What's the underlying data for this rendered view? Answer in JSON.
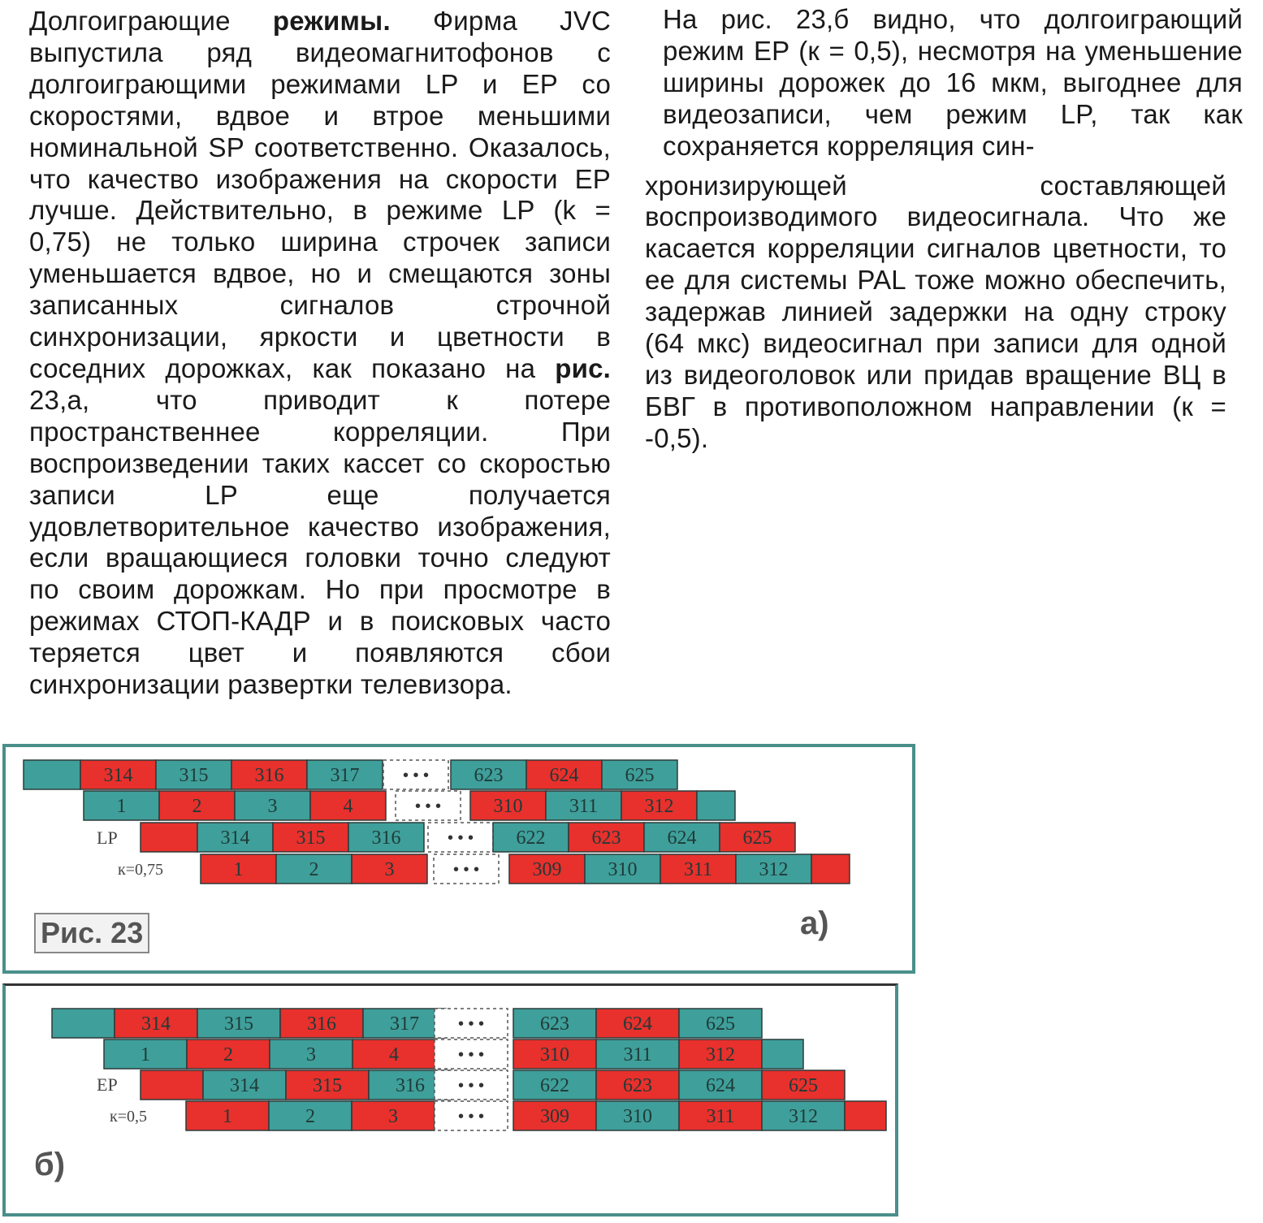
{
  "left_column": {
    "p1_lead": "Долгоиграющие ",
    "p1_bold": "режимы.",
    "p1_a": " Фирма JVC выпустила ряд видеомагнитофонов с долгоиграющими режимами LP и EP со скоростями, вдвое и втрое меньшими номинальной SP соответственно. Оказалось, что качество изображения на скорости EP лучше. Действительно, в режиме LP (k = 0,75) не только ширина строчек записи уменьшается вдвое, но и смещаются зоны записанных сигналов строчной синхронизации, яркости и цветности в соседних дорожках, как показано на ",
    "p1_bold2": "рис.",
    "p1_b": " 23,а, что приводит к потере пространственнее корреляции. При воспроизведении таких кассет со скоростью записи LP еще получается удовлетворительное качество изображения, если вращающиеся головки точно следуют по своим дорожкам. Но при просмотре в режимах СТОП-КАДР и в поисковых часто теряется цвет и появляются сбои синхронизации развертки телевизора."
  },
  "right_column": {
    "p1": "На рис. 23,б видно, что долгоиграющий режим EP (к = 0,5), несмотря на уменьшение ширины дорожек до 16 мкм, выгоднее для видеозаписи, чем режим LP, так как сохраняется корреляция син-",
    "p2": "хронизирующей составляющей воспроизводимого видеосигнала. Что же касается корреляции сигналов цветности, то ее для системы PAL тоже можно обеспечить, задержав линией задержки на одну строку (64 мкс) видеосигнал при записи для одной из видеоголовок или придав вращение ВЦ в БВГ в противоположном направлении (к = -0,5)."
  },
  "figure": {
    "caption": "Рис. 23",
    "colors": {
      "red": "#e8302c",
      "teal": "#3f9f9a",
      "border": "#2b3b3a"
    },
    "panel_a": {
      "label": "а)",
      "mode_label": "LP",
      "k_label": "к=0,75",
      "dots": "• • •",
      "rows": [
        {
          "cells": [
            {
              "t": "",
              "c": "teal"
            },
            {
              "t": "314",
              "c": "red"
            },
            {
              "t": "315",
              "c": "teal"
            },
            {
              "t": "316",
              "c": "red"
            },
            {
              "t": "317",
              "c": "teal"
            }
          ],
          "right": [
            {
              "t": "623",
              "c": "teal"
            },
            {
              "t": "624",
              "c": "red"
            },
            {
              "t": "625",
              "c": "teal"
            }
          ]
        },
        {
          "cells": [
            {
              "t": "1",
              "c": "teal"
            },
            {
              "t": "2",
              "c": "red"
            },
            {
              "t": "3",
              "c": "teal"
            },
            {
              "t": "4",
              "c": "red"
            }
          ],
          "right": [
            {
              "t": "310",
              "c": "red"
            },
            {
              "t": "311",
              "c": "teal"
            },
            {
              "t": "312",
              "c": "red"
            },
            {
              "t": "",
              "c": "teal"
            }
          ]
        },
        {
          "cells": [
            {
              "t": "",
              "c": "red"
            },
            {
              "t": "314",
              "c": "teal"
            },
            {
              "t": "315",
              "c": "red"
            },
            {
              "t": "316",
              "c": "teal"
            }
          ],
          "right": [
            {
              "t": "622",
              "c": "teal"
            },
            {
              "t": "623",
              "c": "red"
            },
            {
              "t": "624",
              "c": "teal"
            },
            {
              "t": "625",
              "c": "red"
            }
          ]
        },
        {
          "cells": [
            {
              "t": "1",
              "c": "red"
            },
            {
              "t": "2",
              "c": "teal"
            },
            {
              "t": "3",
              "c": "red"
            }
          ],
          "right": [
            {
              "t": "309",
              "c": "red"
            },
            {
              "t": "310",
              "c": "teal"
            },
            {
              "t": "311",
              "c": "red"
            },
            {
              "t": "312",
              "c": "teal"
            },
            {
              "t": "",
              "c": "red"
            }
          ]
        }
      ]
    },
    "panel_b": {
      "label": "б)",
      "mode_label": "EP",
      "k_label": "к=0,5",
      "dots": "• • •",
      "rows": [
        {
          "cells": [
            {
              "t": "",
              "c": "teal"
            },
            {
              "t": "314",
              "c": "red"
            },
            {
              "t": "315",
              "c": "teal"
            },
            {
              "t": "316",
              "c": "red"
            },
            {
              "t": "317",
              "c": "teal"
            }
          ],
          "right": [
            {
              "t": "623",
              "c": "teal"
            },
            {
              "t": "624",
              "c": "red"
            },
            {
              "t": "625",
              "c": "teal"
            }
          ]
        },
        {
          "cells": [
            {
              "t": "1",
              "c": "teal"
            },
            {
              "t": "2",
              "c": "red"
            },
            {
              "t": "3",
              "c": "teal"
            },
            {
              "t": "4",
              "c": "red"
            }
          ],
          "right": [
            {
              "t": "310",
              "c": "red"
            },
            {
              "t": "311",
              "c": "teal"
            },
            {
              "t": "312",
              "c": "red"
            },
            {
              "t": "",
              "c": "teal"
            }
          ]
        },
        {
          "cells": [
            {
              "t": "",
              "c": "red"
            },
            {
              "t": "314",
              "c": "teal"
            },
            {
              "t": "315",
              "c": "red"
            },
            {
              "t": "316",
              "c": "teal"
            }
          ],
          "right": [
            {
              "t": "622",
              "c": "teal"
            },
            {
              "t": "623",
              "c": "red"
            },
            {
              "t": "624",
              "c": "teal"
            },
            {
              "t": "625",
              "c": "red"
            }
          ]
        },
        {
          "cells": [
            {
              "t": "1",
              "c": "red"
            },
            {
              "t": "2",
              "c": "teal"
            },
            {
              "t": "3",
              "c": "red"
            }
          ],
          "right": [
            {
              "t": "309",
              "c": "red"
            },
            {
              "t": "310",
              "c": "teal"
            },
            {
              "t": "311",
              "c": "red"
            },
            {
              "t": "312",
              "c": "teal"
            },
            {
              "t": "",
              "c": "red"
            }
          ]
        }
      ]
    }
  }
}
